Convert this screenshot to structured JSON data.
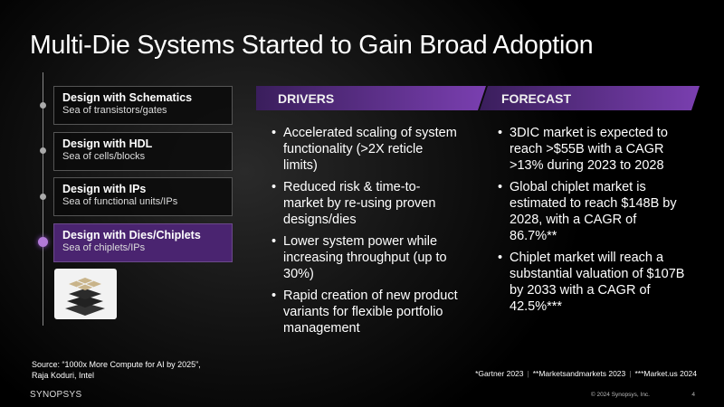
{
  "title": "Multi-Die Systems Started to Gain Broad Adoption",
  "stages": [
    {
      "heading": "Design with Schematics",
      "sub": "Sea of transistors/gates"
    },
    {
      "heading": "Design with HDL",
      "sub": "Sea of cells/blocks"
    },
    {
      "heading": "Design with IPs",
      "sub": "Sea of functional units/IPs"
    },
    {
      "heading": "Design with Dies/Chiplets",
      "sub": "Sea of chiplets/IPs"
    }
  ],
  "active_stage_color": "#4a2470",
  "drivers": {
    "label": "DRIVERS",
    "items": [
      "Accelerated scaling of system functionality (>2X reticle limits)",
      "Reduced risk & time-to-market by re-using proven designs/dies",
      "Lower system power while increasing throughput (up to 30%)",
      "Rapid creation of new product variants for flexible portfolio management"
    ]
  },
  "forecast": {
    "label": "FORECAST",
    "items": [
      "3DIC market is expected to reach >$55B with a CAGR >13% during 2023 to 2028",
      "Global chiplet market is estimated to reach $148B by 2028, with a CAGR of 86.7%**",
      "Chiplet market will reach a substantial valuation of $107B by 2033 with a CAGR of 42.5%***"
    ]
  },
  "source_line1": "Source: “1000x More Compute for AI by 2025”,",
  "source_line2": "Raja Koduri, Intel",
  "footnotes": [
    "*Gartner 2023",
    "**Marketsandmarkets 2023",
    "***Market.us 2024"
  ],
  "logo": "SYNOPSYS",
  "copyright": "© 2024 Synopsys, Inc.",
  "page_number": "4"
}
